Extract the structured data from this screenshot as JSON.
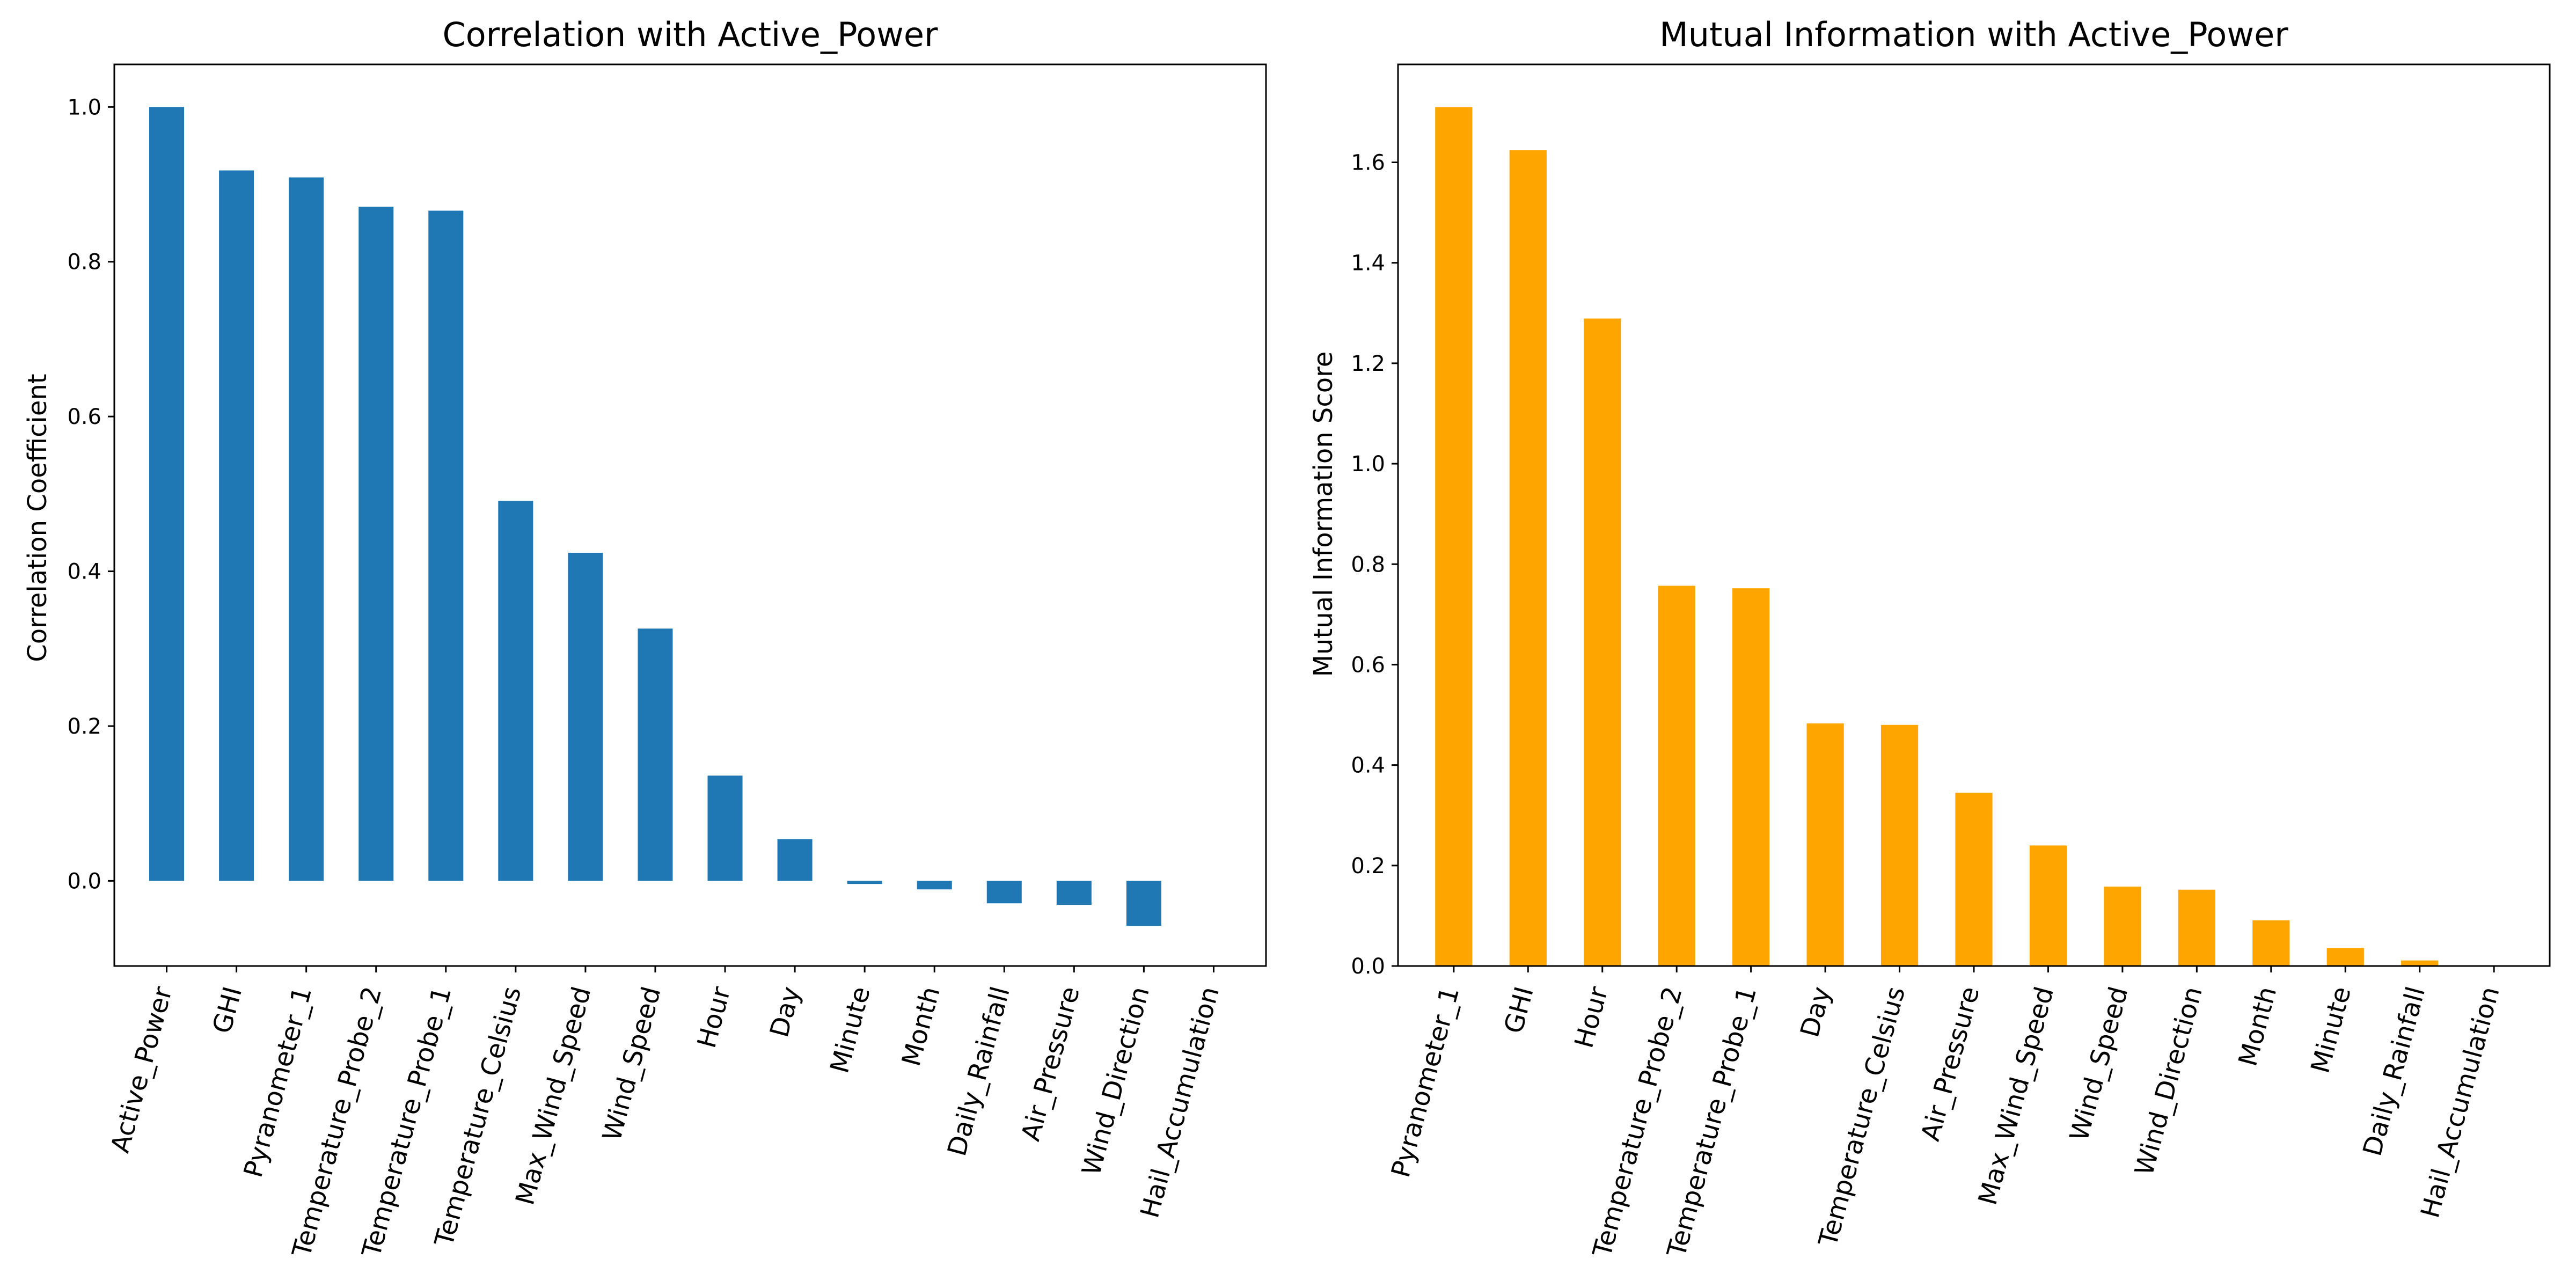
{
  "chart_data": [
    {
      "type": "bar",
      "title": "Correlation with Active_Power",
      "xlabel": "",
      "ylabel": "Correlation Coefficient",
      "categories": [
        "Active_Power",
        "GHI",
        "Pyranometer_1",
        "Temperature_Probe_2",
        "Temperature_Probe_1",
        "Temperature_Celsius",
        "Max_Wind_Speed",
        "Wind_Speed",
        "Hour",
        "Day",
        "Minute",
        "Month",
        "Daily_Rainfall",
        "Air_Pressure",
        "Wind_Direction",
        "Hail_Accumulation"
      ],
      "values": [
        1.0,
        0.918,
        0.909,
        0.871,
        0.866,
        0.491,
        0.424,
        0.326,
        0.136,
        0.054,
        -0.004,
        -0.011,
        -0.029,
        -0.031,
        -0.058,
        0.0
      ],
      "ylim": [
        -0.11,
        1.055
      ],
      "yticks": [
        0.0,
        0.2,
        0.4,
        0.6,
        0.8,
        1.0
      ],
      "ytick_labels": [
        "0.0",
        "0.2",
        "0.4",
        "0.6",
        "0.8",
        "1.0"
      ],
      "color": "#1f77b4",
      "grid": false
    },
    {
      "type": "bar",
      "title": "Mutual Information with Active_Power",
      "xlabel": "",
      "ylabel": "Mutual Information Score",
      "categories": [
        "Pyranometer_1",
        "GHI",
        "Hour",
        "Temperature_Probe_2",
        "Temperature_Probe_1",
        "Day",
        "Temperature_Celsius",
        "Air_Pressure",
        "Max_Wind_Speed",
        "Wind_Speed",
        "Wind_Direction",
        "Month",
        "Minute",
        "Daily_Rainfall",
        "Hail_Accumulation"
      ],
      "values": [
        1.71,
        1.624,
        1.289,
        0.757,
        0.752,
        0.483,
        0.48,
        0.345,
        0.24,
        0.158,
        0.152,
        0.091,
        0.036,
        0.011,
        0.0
      ],
      "ylim": [
        0.0,
        1.795
      ],
      "yticks": [
        0.0,
        0.2,
        0.4,
        0.6,
        0.8,
        1.0,
        1.2,
        1.4,
        1.6
      ],
      "ytick_labels": [
        "0.0",
        "0.2",
        "0.4",
        "0.6",
        "0.8",
        "1.0",
        "1.2",
        "1.4",
        "1.6"
      ],
      "color": "#ffa500",
      "grid": false
    }
  ]
}
